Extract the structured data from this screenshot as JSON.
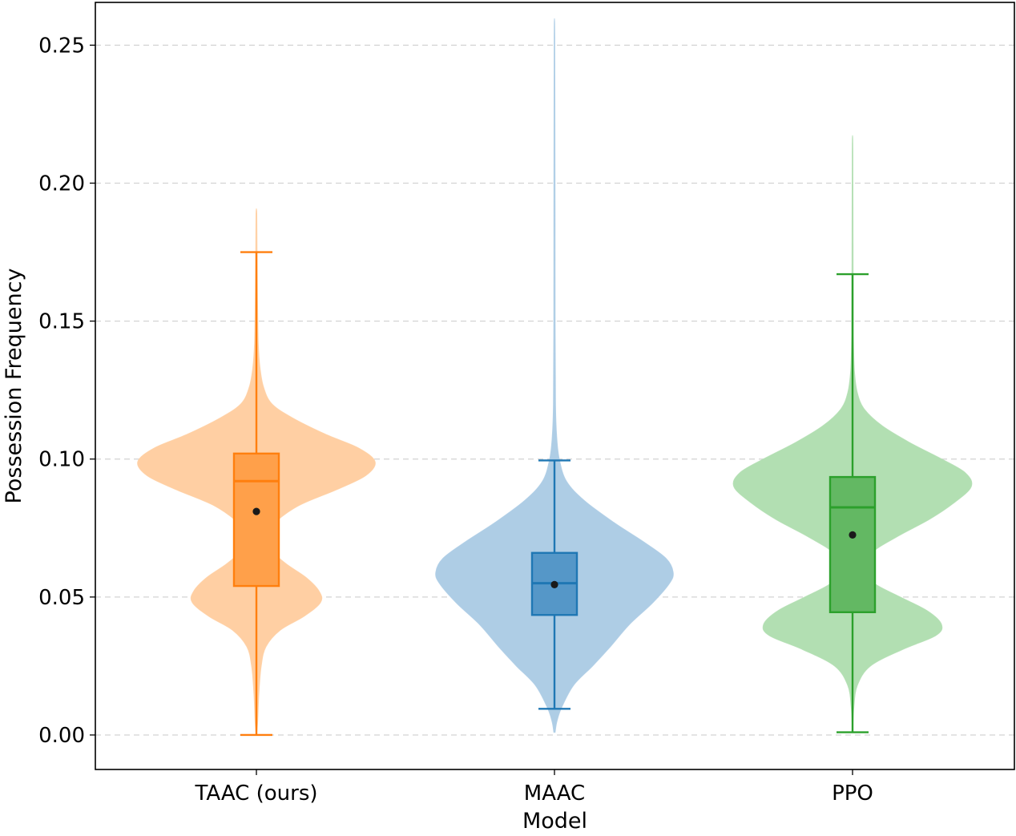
{
  "chart_data": {
    "type": "violin",
    "title": "",
    "xlabel": "Model",
    "ylabel": "Possession Frequency",
    "ylim": [
      -0.0125,
      0.2655
    ],
    "yticks": [
      0.0,
      0.05,
      0.1,
      0.15,
      0.2,
      0.25
    ],
    "ytick_labels": [
      "0.00",
      "0.05",
      "0.10",
      "0.15",
      "0.20",
      "0.25"
    ],
    "grid": "y-dashed",
    "categories": [
      "TAAC (ours)",
      "MAAC",
      "PPO"
    ],
    "series": [
      {
        "name": "TAAC (ours)",
        "color": "#ff7f0e",
        "fill": "#ffcfa3",
        "box_fill": "#ffa04a",
        "kde_extent": [
          0.0,
          0.189
        ],
        "density_profile": [
          [
            0.0,
            0.0
          ],
          [
            0.005,
            0.01
          ],
          [
            0.015,
            0.02
          ],
          [
            0.025,
            0.04
          ],
          [
            0.032,
            0.08
          ],
          [
            0.038,
            0.2
          ],
          [
            0.043,
            0.4
          ],
          [
            0.048,
            0.54
          ],
          [
            0.052,
            0.53
          ],
          [
            0.057,
            0.42
          ],
          [
            0.062,
            0.25
          ],
          [
            0.067,
            0.12
          ],
          [
            0.071,
            0.08
          ],
          [
            0.076,
            0.13
          ],
          [
            0.083,
            0.35
          ],
          [
            0.089,
            0.68
          ],
          [
            0.094,
            0.92
          ],
          [
            0.099,
            1.0
          ],
          [
            0.104,
            0.86
          ],
          [
            0.109,
            0.58
          ],
          [
            0.115,
            0.3
          ],
          [
            0.12,
            0.13
          ],
          [
            0.126,
            0.06
          ],
          [
            0.133,
            0.03
          ],
          [
            0.142,
            0.015
          ],
          [
            0.16,
            0.008
          ],
          [
            0.175,
            0.005
          ],
          [
            0.189,
            0.003
          ]
        ],
        "q1": 0.054,
        "median": 0.092,
        "q3": 0.102,
        "mean": 0.081,
        "whisker_low": 0.0,
        "whisker_high": 0.175
      },
      {
        "name": "MAAC",
        "color": "#1f77b4",
        "fill": "#aecde5",
        "box_fill": "#5597c8",
        "kde_extent": [
          0.001,
          0.253
        ],
        "density_profile": [
          [
            0.001,
            0.005
          ],
          [
            0.005,
            0.02
          ],
          [
            0.01,
            0.06
          ],
          [
            0.018,
            0.16
          ],
          [
            0.025,
            0.32
          ],
          [
            0.032,
            0.47
          ],
          [
            0.04,
            0.63
          ],
          [
            0.048,
            0.83
          ],
          [
            0.055,
            0.97
          ],
          [
            0.059,
            1.0
          ],
          [
            0.064,
            0.94
          ],
          [
            0.07,
            0.75
          ],
          [
            0.077,
            0.5
          ],
          [
            0.085,
            0.25
          ],
          [
            0.092,
            0.1
          ],
          [
            0.1,
            0.04
          ],
          [
            0.108,
            0.018
          ],
          [
            0.12,
            0.008
          ],
          [
            0.15,
            0.005
          ],
          [
            0.2,
            0.004
          ],
          [
            0.253,
            0.002
          ]
        ],
        "q1": 0.0435,
        "median": 0.055,
        "q3": 0.066,
        "mean": 0.0545,
        "whisker_low": 0.0095,
        "whisker_high": 0.0995
      },
      {
        "name": "PPO",
        "color": "#2ca02c",
        "fill": "#b2dfb2",
        "box_fill": "#63b863",
        "kde_extent": [
          0.001,
          0.212
        ],
        "density_profile": [
          [
            0.001,
            0.0
          ],
          [
            0.01,
            0.01
          ],
          [
            0.018,
            0.04
          ],
          [
            0.025,
            0.15
          ],
          [
            0.031,
            0.42
          ],
          [
            0.036,
            0.7
          ],
          [
            0.04,
            0.75
          ],
          [
            0.045,
            0.63
          ],
          [
            0.05,
            0.4
          ],
          [
            0.055,
            0.18
          ],
          [
            0.06,
            0.1
          ],
          [
            0.066,
            0.16
          ],
          [
            0.072,
            0.38
          ],
          [
            0.078,
            0.64
          ],
          [
            0.084,
            0.85
          ],
          [
            0.09,
            1.0
          ],
          [
            0.095,
            0.95
          ],
          [
            0.1,
            0.75
          ],
          [
            0.106,
            0.48
          ],
          [
            0.112,
            0.25
          ],
          [
            0.118,
            0.1
          ],
          [
            0.124,
            0.04
          ],
          [
            0.132,
            0.015
          ],
          [
            0.145,
            0.006
          ],
          [
            0.17,
            0.004
          ],
          [
            0.212,
            0.002
          ]
        ],
        "q1": 0.0445,
        "median": 0.0825,
        "q3": 0.0935,
        "mean": 0.0725,
        "whisker_low": 0.001,
        "whisker_high": 0.167
      }
    ]
  }
}
